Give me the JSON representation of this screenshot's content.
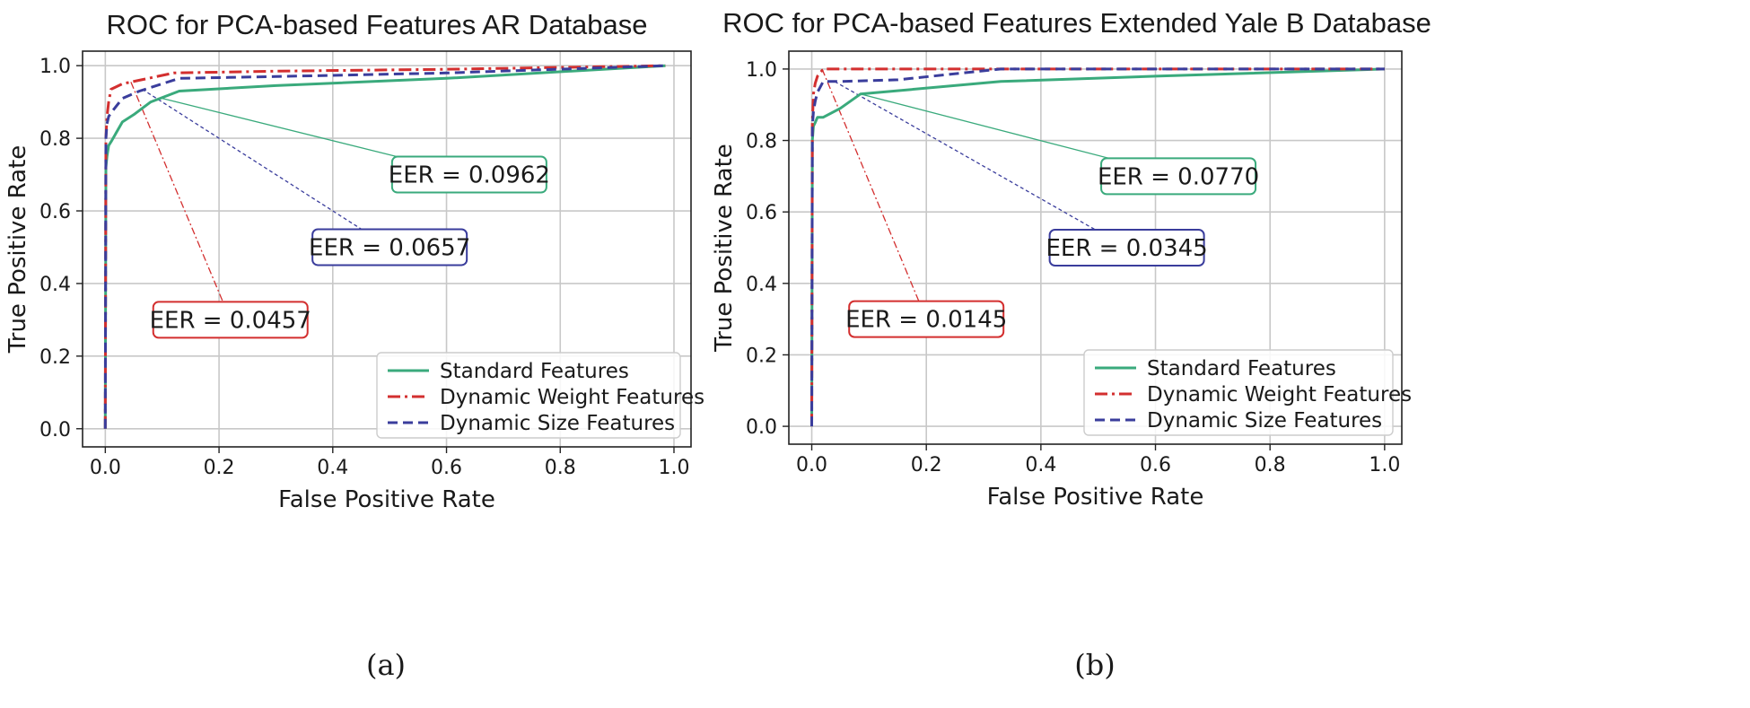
{
  "chart_data": [
    {
      "type": "line",
      "panel_label": "(a)",
      "title": "ROC for PCA-based Features AR Database",
      "xlabel": "False Positive Rate",
      "ylabel": "True Positive Rate",
      "xlim": [
        -0.04,
        1.03
      ],
      "ylim": [
        -0.05,
        1.04
      ],
      "xticks": [
        0.0,
        0.2,
        0.4,
        0.6,
        0.8,
        1.0
      ],
      "xtick_labels": [
        "0.0",
        "0.2",
        "0.4",
        "0.6",
        "0.8",
        "1.0"
      ],
      "yticks": [
        0.0,
        0.2,
        0.4,
        0.6,
        0.8,
        1.0
      ],
      "ytick_labels": [
        "0.0",
        "0.2",
        "0.4",
        "0.6",
        "0.8",
        "1.0"
      ],
      "grid": true,
      "legend_position": "bottom-right",
      "series": [
        {
          "name": "Standard Features",
          "color": "#3aaa7c",
          "dash": "solid",
          "x": [
            0,
            0.001,
            0.003,
            0.006,
            0.01,
            0.03,
            0.05,
            0.08,
            0.13,
            0.3,
            0.6,
            0.985
          ],
          "y": [
            0,
            0.72,
            0.75,
            0.78,
            0.79,
            0.845,
            0.865,
            0.9,
            0.93,
            0.945,
            0.965,
            1.0
          ]
        },
        {
          "name": "Dynamic Weight Features",
          "color": "#d32f2f",
          "dash": "dashdot",
          "x": [
            0,
            0.001,
            0.003,
            0.006,
            0.01,
            0.03,
            0.06,
            0.12,
            0.3,
            0.6,
            0.985
          ],
          "y": [
            0,
            0.8,
            0.86,
            0.9,
            0.935,
            0.95,
            0.96,
            0.98,
            0.985,
            0.99,
            1.0
          ]
        },
        {
          "name": "Dynamic Size Features",
          "color": "#3a3d9c",
          "dash": "dashed",
          "x": [
            0,
            0.001,
            0.003,
            0.006,
            0.01,
            0.03,
            0.06,
            0.13,
            0.3,
            0.6,
            0.985
          ],
          "y": [
            0,
            0.8,
            0.84,
            0.86,
            0.87,
            0.91,
            0.93,
            0.965,
            0.97,
            0.98,
            1.0
          ]
        }
      ],
      "annotations": [
        {
          "text": "EER = 0.0962",
          "color": "#3aaa7c",
          "point": [
            0.1,
            0.91
          ],
          "text_pos": [
            0.64,
            0.7
          ]
        },
        {
          "text": "EER = 0.0657",
          "color": "#3a3d9c",
          "point": [
            0.065,
            0.935
          ],
          "text_pos": [
            0.5,
            0.5
          ]
        },
        {
          "text": "EER = 0.0457",
          "color": "#d32f2f",
          "point": [
            0.045,
            0.955
          ],
          "text_pos": [
            0.22,
            0.3
          ]
        }
      ]
    },
    {
      "type": "line",
      "panel_label": "(b)",
      "title": "ROC for PCA-based Features Extended Yale B Database",
      "xlabel": "False Positive Rate",
      "ylabel": "True Positive Rate",
      "xlim": [
        -0.04,
        1.03
      ],
      "ylim": [
        -0.05,
        1.05
      ],
      "xticks": [
        0.0,
        0.2,
        0.4,
        0.6,
        0.8,
        1.0
      ],
      "xtick_labels": [
        "0.0",
        "0.2",
        "0.4",
        "0.6",
        "0.8",
        "1.0"
      ],
      "yticks": [
        0.0,
        0.2,
        0.4,
        0.6,
        0.8,
        1.0
      ],
      "ytick_labels": [
        "0.0",
        "0.2",
        "0.4",
        "0.6",
        "0.8",
        "1.0"
      ],
      "grid": true,
      "legend_position": "bottom-right",
      "series": [
        {
          "name": "Standard Features",
          "color": "#3aaa7c",
          "dash": "solid",
          "x": [
            0,
            0.001,
            0.003,
            0.006,
            0.01,
            0.02,
            0.05,
            0.085,
            0.33,
            0.6,
            1.0
          ],
          "y": [
            0,
            0.8,
            0.84,
            0.85,
            0.865,
            0.865,
            0.89,
            0.93,
            0.965,
            0.98,
            1.0
          ]
        },
        {
          "name": "Dynamic Weight Features",
          "color": "#d32f2f",
          "dash": "dashdot",
          "x": [
            0,
            0.001,
            0.003,
            0.006,
            0.01,
            0.02,
            0.06,
            0.3,
            1.0
          ],
          "y": [
            0,
            0.85,
            0.93,
            0.96,
            0.98,
            1.0,
            1.0,
            1.0,
            1.0
          ]
        },
        {
          "name": "Dynamic Size Features",
          "color": "#3a3d9c",
          "dash": "dashed",
          "x": [
            0,
            0.001,
            0.003,
            0.006,
            0.01,
            0.02,
            0.05,
            0.15,
            0.33,
            0.6,
            1.0
          ],
          "y": [
            0,
            0.84,
            0.88,
            0.91,
            0.935,
            0.965,
            0.965,
            0.97,
            1.0,
            1.0,
            1.0
          ]
        }
      ],
      "annotations": [
        {
          "text": "EER = 0.0770",
          "color": "#3aaa7c",
          "point": [
            0.085,
            0.93
          ],
          "text_pos": [
            0.64,
            0.7
          ]
        },
        {
          "text": "EER = 0.0345",
          "color": "#3a3d9c",
          "point": [
            0.04,
            0.965
          ],
          "text_pos": [
            0.55,
            0.5
          ]
        },
        {
          "text": "EER = 0.0145",
          "color": "#d32f2f",
          "point": [
            0.018,
            1.0
          ],
          "text_pos": [
            0.2,
            0.3
          ]
        }
      ]
    }
  ]
}
